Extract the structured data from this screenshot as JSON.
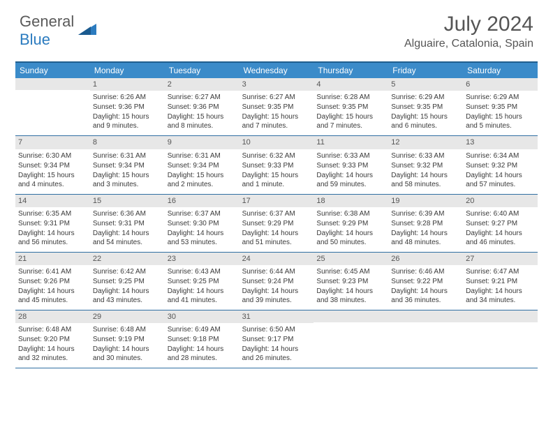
{
  "logo": {
    "text1": "General",
    "text2": "Blue"
  },
  "title": "July 2024",
  "location": "Alguaire, Catalonia, Spain",
  "header_bg": "#3b8bc9",
  "daynum_bg": "#e7e7e7",
  "border_color": "#2f6fa2",
  "days_of_week": [
    "Sunday",
    "Monday",
    "Tuesday",
    "Wednesday",
    "Thursday",
    "Friday",
    "Saturday"
  ],
  "weeks": [
    [
      null,
      {
        "n": "1",
        "sr": "6:26 AM",
        "ss": "9:36 PM",
        "dl": "15 hours and 9 minutes."
      },
      {
        "n": "2",
        "sr": "6:27 AM",
        "ss": "9:36 PM",
        "dl": "15 hours and 8 minutes."
      },
      {
        "n": "3",
        "sr": "6:27 AM",
        "ss": "9:35 PM",
        "dl": "15 hours and 7 minutes."
      },
      {
        "n": "4",
        "sr": "6:28 AM",
        "ss": "9:35 PM",
        "dl": "15 hours and 7 minutes."
      },
      {
        "n": "5",
        "sr": "6:29 AM",
        "ss": "9:35 PM",
        "dl": "15 hours and 6 minutes."
      },
      {
        "n": "6",
        "sr": "6:29 AM",
        "ss": "9:35 PM",
        "dl": "15 hours and 5 minutes."
      }
    ],
    [
      {
        "n": "7",
        "sr": "6:30 AM",
        "ss": "9:34 PM",
        "dl": "15 hours and 4 minutes."
      },
      {
        "n": "8",
        "sr": "6:31 AM",
        "ss": "9:34 PM",
        "dl": "15 hours and 3 minutes."
      },
      {
        "n": "9",
        "sr": "6:31 AM",
        "ss": "9:34 PM",
        "dl": "15 hours and 2 minutes."
      },
      {
        "n": "10",
        "sr": "6:32 AM",
        "ss": "9:33 PM",
        "dl": "15 hours and 1 minute."
      },
      {
        "n": "11",
        "sr": "6:33 AM",
        "ss": "9:33 PM",
        "dl": "14 hours and 59 minutes."
      },
      {
        "n": "12",
        "sr": "6:33 AM",
        "ss": "9:32 PM",
        "dl": "14 hours and 58 minutes."
      },
      {
        "n": "13",
        "sr": "6:34 AM",
        "ss": "9:32 PM",
        "dl": "14 hours and 57 minutes."
      }
    ],
    [
      {
        "n": "14",
        "sr": "6:35 AM",
        "ss": "9:31 PM",
        "dl": "14 hours and 56 minutes."
      },
      {
        "n": "15",
        "sr": "6:36 AM",
        "ss": "9:31 PM",
        "dl": "14 hours and 54 minutes."
      },
      {
        "n": "16",
        "sr": "6:37 AM",
        "ss": "9:30 PM",
        "dl": "14 hours and 53 minutes."
      },
      {
        "n": "17",
        "sr": "6:37 AM",
        "ss": "9:29 PM",
        "dl": "14 hours and 51 minutes."
      },
      {
        "n": "18",
        "sr": "6:38 AM",
        "ss": "9:29 PM",
        "dl": "14 hours and 50 minutes."
      },
      {
        "n": "19",
        "sr": "6:39 AM",
        "ss": "9:28 PM",
        "dl": "14 hours and 48 minutes."
      },
      {
        "n": "20",
        "sr": "6:40 AM",
        "ss": "9:27 PM",
        "dl": "14 hours and 46 minutes."
      }
    ],
    [
      {
        "n": "21",
        "sr": "6:41 AM",
        "ss": "9:26 PM",
        "dl": "14 hours and 45 minutes."
      },
      {
        "n": "22",
        "sr": "6:42 AM",
        "ss": "9:25 PM",
        "dl": "14 hours and 43 minutes."
      },
      {
        "n": "23",
        "sr": "6:43 AM",
        "ss": "9:25 PM",
        "dl": "14 hours and 41 minutes."
      },
      {
        "n": "24",
        "sr": "6:44 AM",
        "ss": "9:24 PM",
        "dl": "14 hours and 39 minutes."
      },
      {
        "n": "25",
        "sr": "6:45 AM",
        "ss": "9:23 PM",
        "dl": "14 hours and 38 minutes."
      },
      {
        "n": "26",
        "sr": "6:46 AM",
        "ss": "9:22 PM",
        "dl": "14 hours and 36 minutes."
      },
      {
        "n": "27",
        "sr": "6:47 AM",
        "ss": "9:21 PM",
        "dl": "14 hours and 34 minutes."
      }
    ],
    [
      {
        "n": "28",
        "sr": "6:48 AM",
        "ss": "9:20 PM",
        "dl": "14 hours and 32 minutes."
      },
      {
        "n": "29",
        "sr": "6:48 AM",
        "ss": "9:19 PM",
        "dl": "14 hours and 30 minutes."
      },
      {
        "n": "30",
        "sr": "6:49 AM",
        "ss": "9:18 PM",
        "dl": "14 hours and 28 minutes."
      },
      {
        "n": "31",
        "sr": "6:50 AM",
        "ss": "9:17 PM",
        "dl": "14 hours and 26 minutes."
      },
      null,
      null,
      null
    ]
  ],
  "labels": {
    "sunrise": "Sunrise: ",
    "sunset": "Sunset: ",
    "daylight": "Daylight: "
  }
}
